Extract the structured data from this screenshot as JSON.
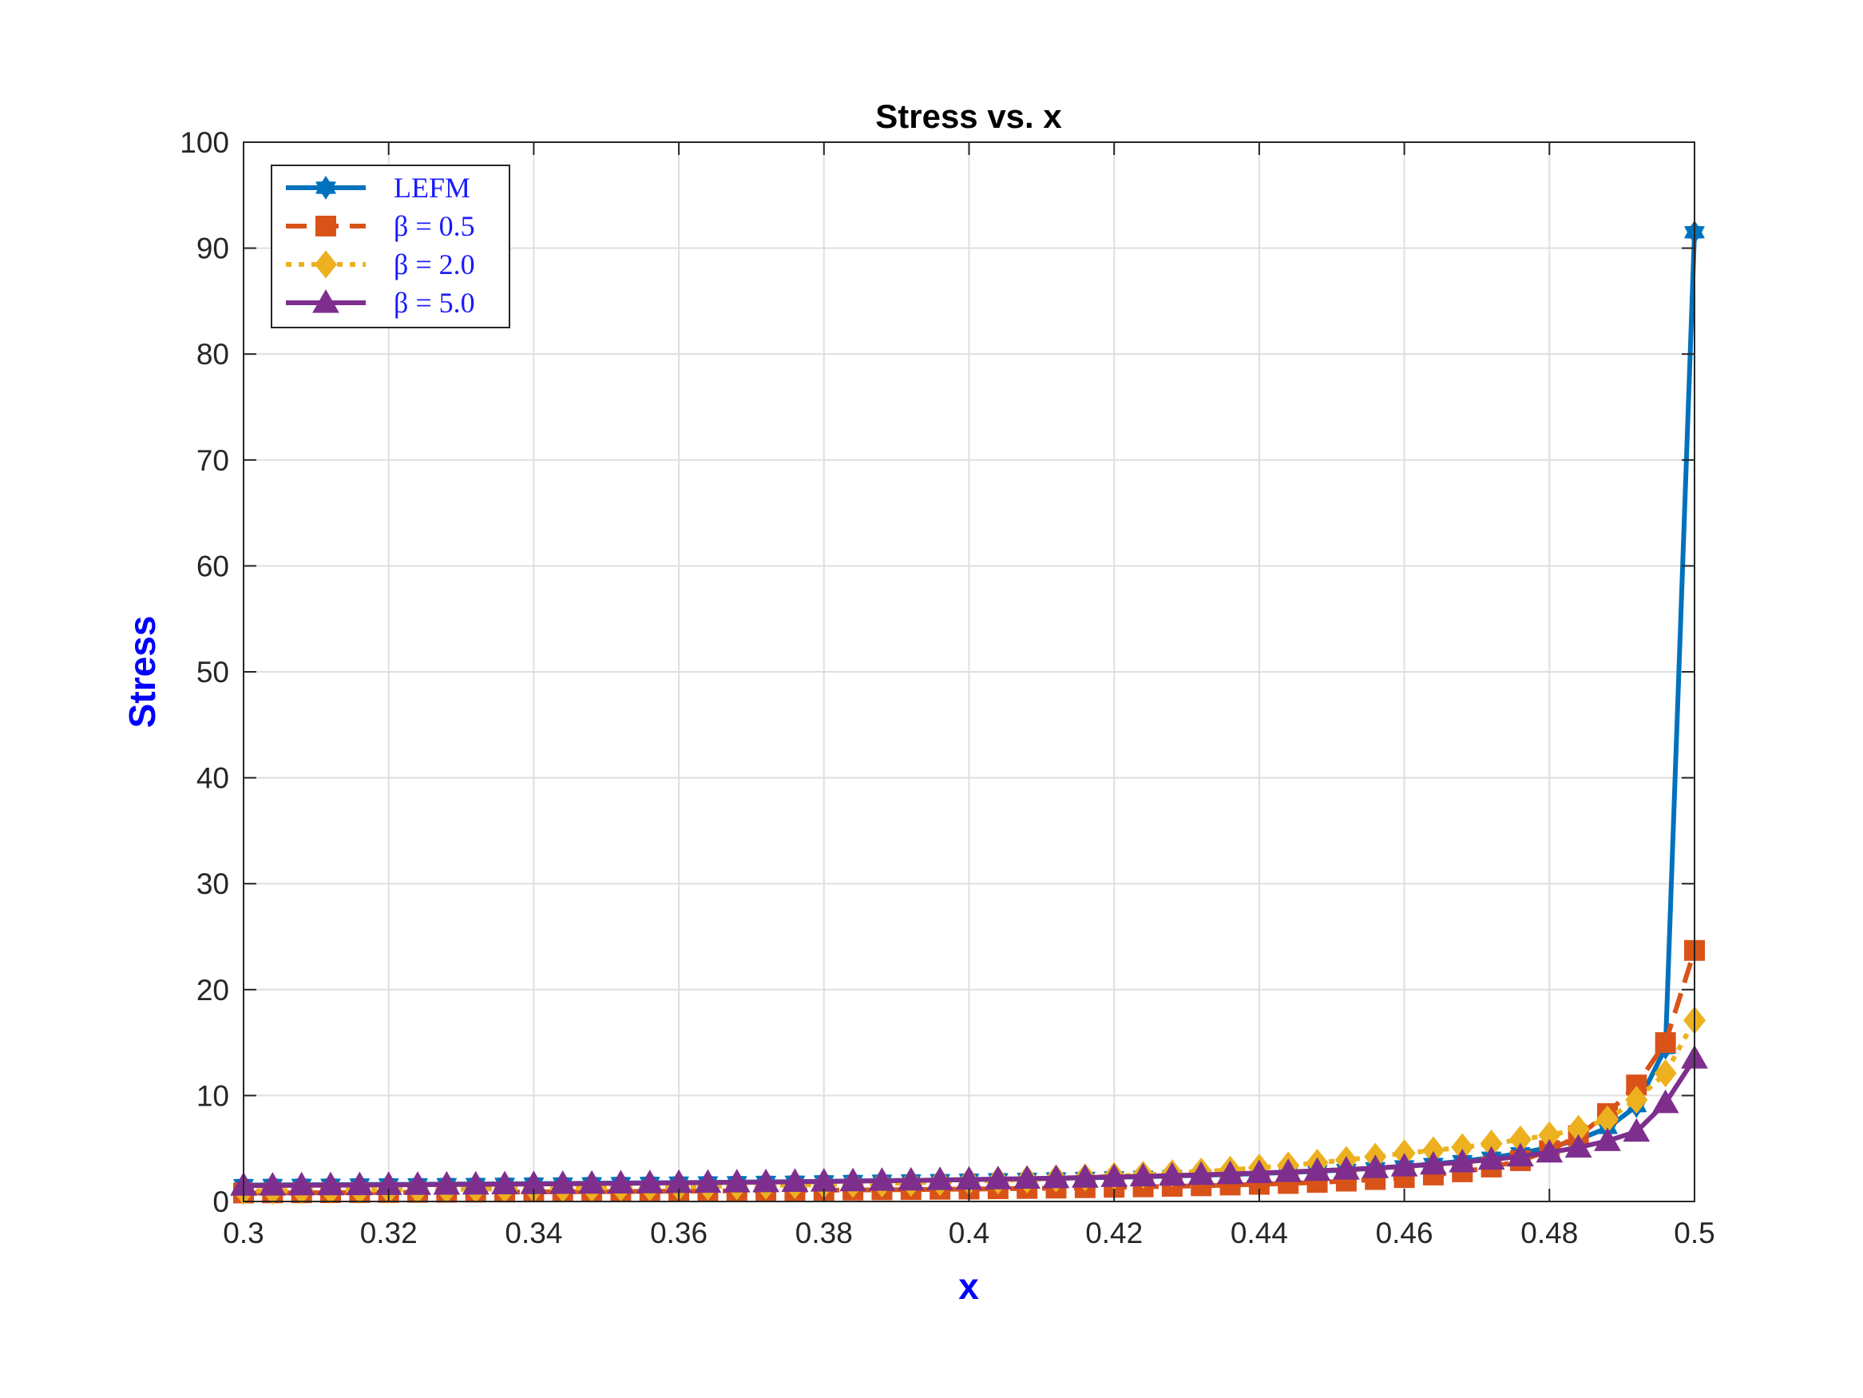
{
  "chart_data": {
    "type": "line",
    "title": "Stress vs. x",
    "xlabel": "x",
    "ylabel": "Stress",
    "xlim": [
      0.3,
      0.5
    ],
    "ylim": [
      0,
      100
    ],
    "xticks": [
      "0.3",
      "0.32",
      "0.34",
      "0.36",
      "0.38",
      "0.4",
      "0.42",
      "0.44",
      "0.46",
      "0.48",
      "0.5"
    ],
    "yticks": [
      "0",
      "10",
      "20",
      "30",
      "40",
      "50",
      "60",
      "70",
      "80",
      "90",
      "100"
    ],
    "grid": true,
    "legend_position": "top-left",
    "x": [
      0.3,
      0.304,
      0.308,
      0.312,
      0.316,
      0.32,
      0.324,
      0.328,
      0.332,
      0.336,
      0.34,
      0.344,
      0.348,
      0.352,
      0.356,
      0.36,
      0.364,
      0.368,
      0.372,
      0.376,
      0.38,
      0.384,
      0.388,
      0.392,
      0.396,
      0.4,
      0.404,
      0.408,
      0.412,
      0.416,
      0.42,
      0.424,
      0.428,
      0.432,
      0.436,
      0.44,
      0.444,
      0.448,
      0.452,
      0.456,
      0.46,
      0.464,
      0.468,
      0.472,
      0.476,
      0.48,
      0.484,
      0.488,
      0.492,
      0.496,
      0.5
    ],
    "series": [
      {
        "name": "LEFM",
        "legend_text": "LEFM",
        "color": "#0072BD",
        "line_style": "solid",
        "marker": "hexagram",
        "values": [
          1.55,
          1.56,
          1.57,
          1.58,
          1.6,
          1.61,
          1.62,
          1.64,
          1.65,
          1.67,
          1.69,
          1.7,
          1.72,
          1.74,
          1.76,
          1.78,
          1.8,
          1.82,
          1.85,
          1.87,
          1.9,
          1.93,
          1.96,
          1.99,
          2.02,
          2.06,
          2.1,
          2.14,
          2.18,
          2.23,
          2.28,
          2.34,
          2.4,
          2.47,
          2.55,
          2.64,
          2.74,
          2.85,
          2.98,
          3.14,
          3.32,
          3.54,
          3.81,
          4.13,
          4.55,
          5.1,
          5.85,
          6.95,
          9.0,
          14.5,
          91.5
        ]
      },
      {
        "name": "β = 0.5",
        "legend_text": "β = 0.5",
        "color": "#D95319",
        "line_style": "dashed",
        "marker": "square",
        "values": [
          0.8,
          0.81,
          0.82,
          0.83,
          0.84,
          0.85,
          0.86,
          0.87,
          0.88,
          0.89,
          0.9,
          0.92,
          0.93,
          0.94,
          0.96,
          0.97,
          0.99,
          1.0,
          1.02,
          1.04,
          1.06,
          1.08,
          1.1,
          1.12,
          1.15,
          1.17,
          1.2,
          1.23,
          1.26,
          1.3,
          1.34,
          1.38,
          1.43,
          1.48,
          1.55,
          1.62,
          1.7,
          1.8,
          1.92,
          2.07,
          2.25,
          2.5,
          2.8,
          3.25,
          3.85,
          4.8,
          6.2,
          8.3,
          11.0,
          15.0,
          23.7
        ]
      },
      {
        "name": "β = 2.0",
        "legend_text": "β = 2.0",
        "color": "#EDB120",
        "line_style": "dotted",
        "marker": "diamond",
        "values": [
          1.0,
          1.02,
          1.04,
          1.06,
          1.08,
          1.1,
          1.12,
          1.14,
          1.17,
          1.19,
          1.22,
          1.25,
          1.28,
          1.31,
          1.34,
          1.38,
          1.42,
          1.46,
          1.5,
          1.55,
          1.6,
          1.65,
          1.71,
          1.77,
          1.84,
          1.91,
          1.99,
          2.08,
          2.17,
          2.28,
          2.4,
          2.52,
          2.66,
          2.82,
          2.99,
          3.19,
          3.4,
          3.65,
          3.92,
          4.22,
          4.55,
          4.82,
          5.12,
          5.45,
          5.85,
          6.25,
          6.85,
          7.75,
          9.6,
          12.1,
          17.1
        ]
      },
      {
        "name": "β = 5.0",
        "legend_text": "β = 5.0",
        "color": "#7E2F8E",
        "line_style": "solid",
        "marker": "triangle",
        "values": [
          1.5,
          1.51,
          1.53,
          1.54,
          1.55,
          1.57,
          1.58,
          1.6,
          1.61,
          1.63,
          1.65,
          1.67,
          1.69,
          1.71,
          1.73,
          1.76,
          1.78,
          1.81,
          1.83,
          1.86,
          1.89,
          1.92,
          1.96,
          1.99,
          2.03,
          2.07,
          2.11,
          2.16,
          2.21,
          2.26,
          2.32,
          2.38,
          2.45,
          2.52,
          2.6,
          2.69,
          2.79,
          2.9,
          3.02,
          3.16,
          3.32,
          3.5,
          3.71,
          3.96,
          4.26,
          4.63,
          5.1,
          5.72,
          6.6,
          9.3,
          13.5
        ]
      }
    ]
  }
}
